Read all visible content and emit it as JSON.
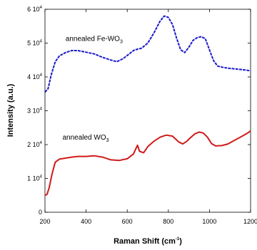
{
  "chart_data": {
    "type": "line",
    "title": "",
    "xlabel": "Raman Shift (cm",
    "xlabel_sup": "-1",
    "xlabel_end": ")",
    "ylabel": "Intensity (a.u.)",
    "xlim": [
      200,
      1200
    ],
    "ylim": [
      0,
      60000
    ],
    "x_ticks": [
      {
        "value": 200,
        "label": "200"
      },
      {
        "value": 400,
        "label": "400"
      },
      {
        "value": 600,
        "label": "600"
      },
      {
        "value": 800,
        "label": "800"
      },
      {
        "value": 1000,
        "label": "1000"
      },
      {
        "value": 1200,
        "label": "1200"
      }
    ],
    "y_ticks": [
      {
        "value": 0,
        "mant": "0",
        "exp": ""
      },
      {
        "value": 10000,
        "mant": "1 10",
        "exp": "4"
      },
      {
        "value": 20000,
        "mant": "2 10",
        "exp": "4"
      },
      {
        "value": 30000,
        "mant": "3 10",
        "exp": "4"
      },
      {
        "value": 40000,
        "mant": "4 10",
        "exp": "4"
      },
      {
        "value": 50000,
        "mant": "5 10",
        "exp": "4"
      },
      {
        "value": 60000,
        "mant": "6 10",
        "exp": "4"
      }
    ],
    "grid": false,
    "legend": "none",
    "series": [
      {
        "name": "annealed Fe-WO",
        "name_sub": "3",
        "color": "#1a1acc",
        "label_at": [
          300,
          50600
        ],
        "x": [
          200,
          215,
          230,
          250,
          270,
          300,
          330,
          360,
          400,
          440,
          480,
          520,
          550,
          580,
          610,
          630,
          650,
          670,
          700,
          730,
          760,
          780,
          800,
          820,
          840,
          860,
          880,
          900,
          920,
          940,
          960,
          980,
          1000,
          1020,
          1040,
          1060,
          1080,
          1100,
          1120,
          1150,
          1180,
          1200
        ],
        "values": [
          35500,
          36500,
          40500,
          44500,
          46200,
          47200,
          47800,
          47800,
          47300,
          46800,
          45800,
          45000,
          44500,
          45400,
          46800,
          47800,
          48200,
          48500,
          50000,
          53000,
          56500,
          58000,
          57600,
          55500,
          51500,
          48000,
          47200,
          48800,
          50800,
          51600,
          51900,
          51300,
          48000,
          44800,
          43200,
          42900,
          42700,
          42500,
          42400,
          42200,
          42000,
          41800
        ]
      },
      {
        "name": "annealed WO",
        "name_sub": "3",
        "color": "#d01a1a",
        "label_at": [
          285,
          21500
        ],
        "x": [
          200,
          210,
          220,
          235,
          250,
          270,
          300,
          330,
          360,
          400,
          440,
          480,
          520,
          560,
          600,
          630,
          650,
          660,
          680,
          700,
          730,
          760,
          790,
          820,
          850,
          870,
          890,
          910,
          930,
          950,
          970,
          990,
          1010,
          1030,
          1060,
          1090,
          1120,
          1150,
          1180,
          1200
        ],
        "values": [
          5000,
          5300,
          7200,
          11500,
          14800,
          15700,
          16000,
          16300,
          16500,
          16500,
          16700,
          16300,
          15500,
          15300,
          15800,
          17200,
          19800,
          18000,
          17600,
          19400,
          21000,
          22200,
          22800,
          22500,
          20800,
          20200,
          21000,
          22200,
          23200,
          23700,
          23400,
          22200,
          20300,
          19600,
          19700,
          20200,
          21200,
          22200,
          23200,
          24000
        ]
      }
    ]
  }
}
